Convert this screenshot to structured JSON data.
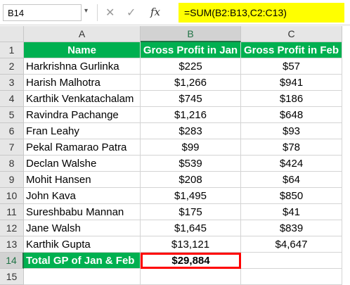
{
  "formula_bar": {
    "name_box": "B14",
    "cancel_icon": "✕",
    "enter_icon": "✓",
    "fx_label": "fx",
    "formula": "=SUM(B2:B13,C2:C13)",
    "highlight_color": "#ffff00"
  },
  "columns": [
    "A",
    "B",
    "C"
  ],
  "rows": [
    "1",
    "2",
    "3",
    "4",
    "5",
    "6",
    "7",
    "8",
    "9",
    "10",
    "11",
    "12",
    "13",
    "14",
    "15"
  ],
  "table": {
    "headers": [
      "Name",
      "Gross Profit in Jan",
      "Gross Profit in Feb"
    ],
    "rows": [
      {
        "name": "Harkrishna Gurlinka",
        "jan": "$225",
        "feb": "$57"
      },
      {
        "name": "Harish Malhotra",
        "jan": "$1,266",
        "feb": "$941"
      },
      {
        "name": "Karthik Venkatachalam",
        "jan": "$745",
        "feb": "$186"
      },
      {
        "name": "Ravindra Pachange",
        "jan": "$1,216",
        "feb": "$648"
      },
      {
        "name": "Fran Leahy",
        "jan": "$283",
        "feb": "$93"
      },
      {
        "name": "Pekal Ramarao Patra",
        "jan": "$99",
        "feb": "$78"
      },
      {
        "name": "Declan Walshe",
        "jan": "$539",
        "feb": "$424"
      },
      {
        "name": "Mohit Hansen",
        "jan": "$208",
        "feb": "$64"
      },
      {
        "name": "John Kava",
        "jan": "$1,495",
        "feb": "$850"
      },
      {
        "name": "Sureshbabu Mannan",
        "jan": "$175",
        "feb": "$41"
      },
      {
        "name": "Jane Walsh",
        "jan": "$1,645",
        "feb": "$839"
      },
      {
        "name": "Karthik Gupta",
        "jan": "$13,121",
        "feb": "$4,647"
      }
    ],
    "total_label": "Total GP of Jan & Feb",
    "total_value": "$29,884"
  },
  "selected_cell": "B14",
  "colors": {
    "header_fill": "#00b050",
    "header_text": "#ffffff",
    "selection_border": "#ff0000",
    "excel_green": "#217346"
  }
}
